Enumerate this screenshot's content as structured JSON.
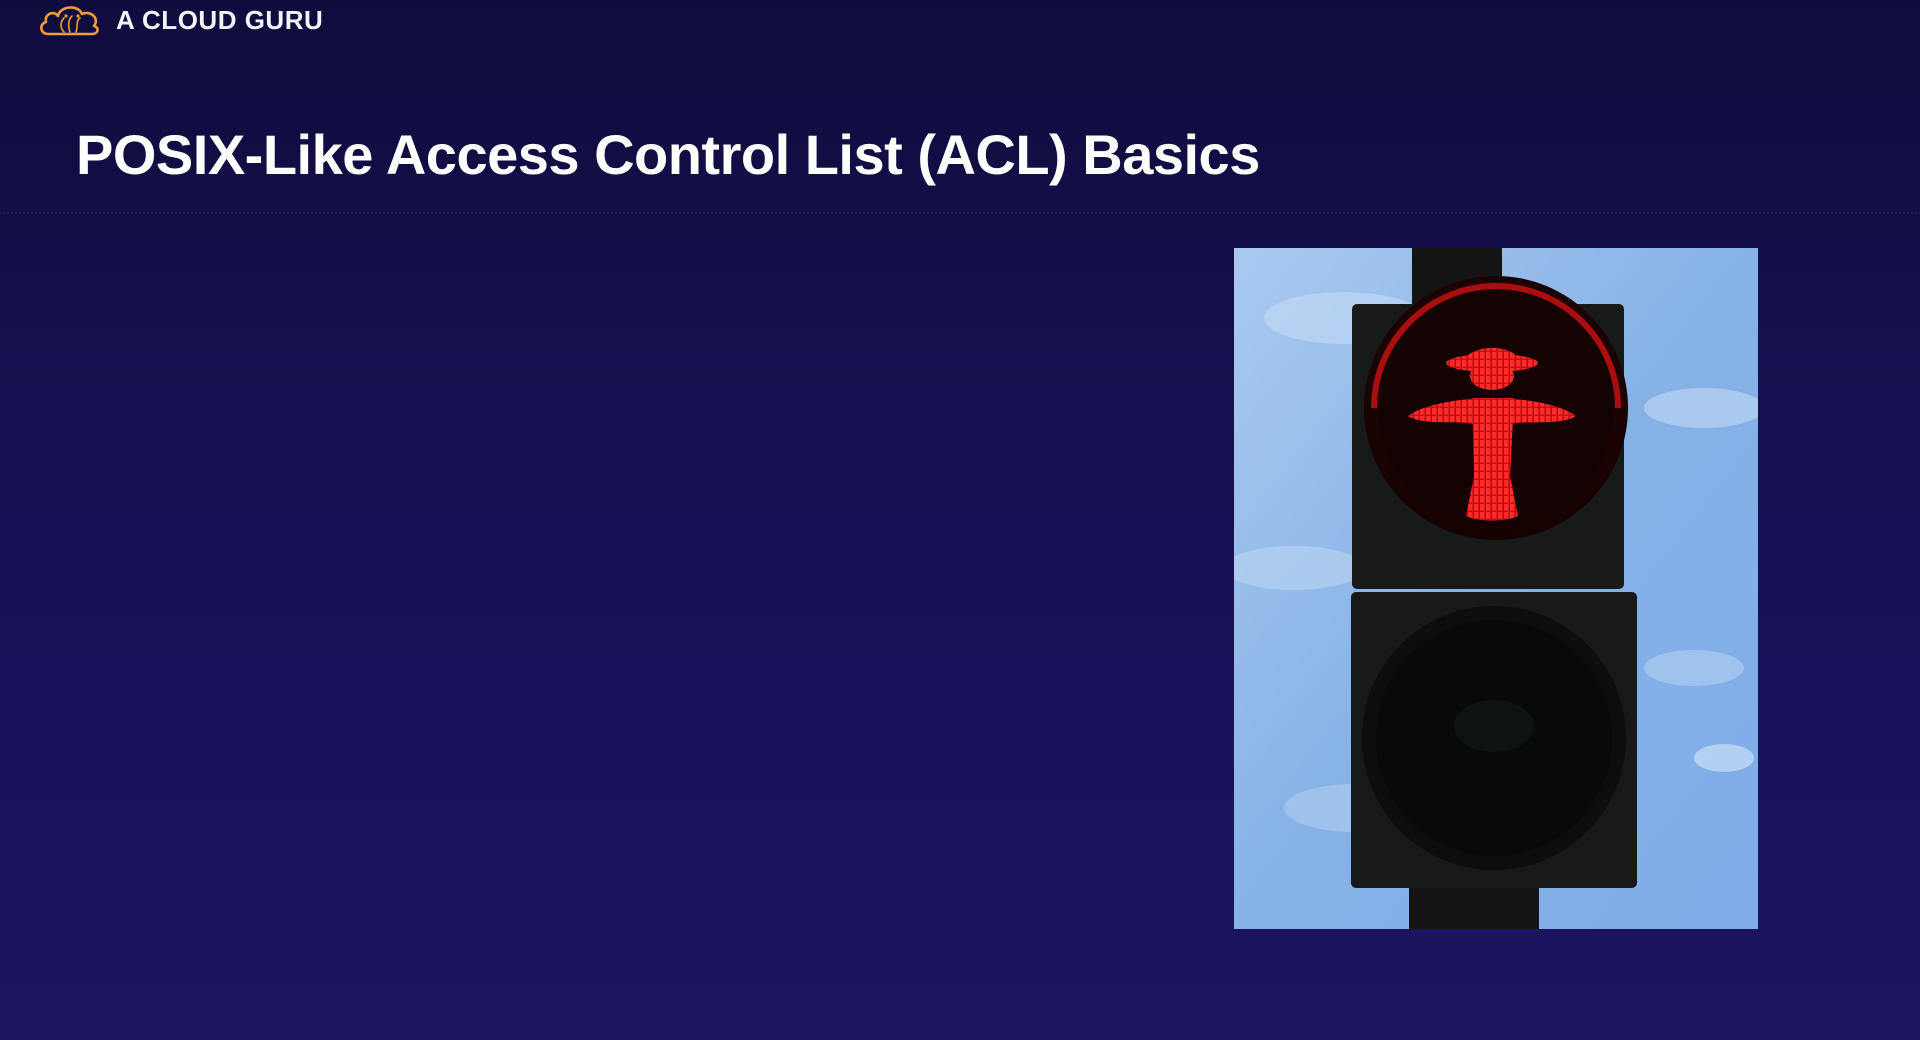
{
  "brand": {
    "name": "A CLOUD GURU",
    "logo_icon": "cloud-icon",
    "accent_color": "#f39c35"
  },
  "slide": {
    "title": "POSIX-Like Access Control List (ACL) Basics",
    "image_subject": "pedestrian-traffic-light-red-icon"
  },
  "colors": {
    "background_top": "#0f0c3d",
    "background_bottom": "#1c1661",
    "sky": "#8fb8ea",
    "signal_red": "#ff1e1e"
  }
}
